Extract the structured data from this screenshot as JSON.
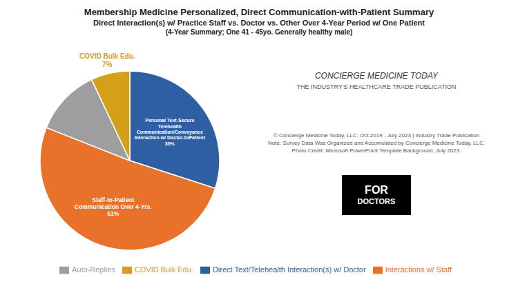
{
  "chart_data": {
    "type": "pie",
    "title": "Membership Medicine Personalized, Direct Communication-with-Patient Summary",
    "subtitle": [
      "Direct Interaction(s) w/ Practice Staff vs. Doctor vs. Other Over 4-Year Period w/ One Patient",
      "(4-Year Summary; One 41 - 45yo. Generally healthy male)"
    ],
    "categories": [
      "Direct Text/Telehealth Interaction(s) w/ Doctor",
      "Interactions w/ Staff",
      "Auto-Replies",
      "COVID Bulk Edu."
    ],
    "values": [
      30,
      51,
      12,
      7
    ],
    "value_labels": [
      "Personal Text-Secure\nTelehealth\nCommunication/Conveyance\nInteraction w/ Doctor-toPatient\n30%",
      "Staff-to-Patient\nCommunication Over 4-Yrs.\n51%",
      null,
      "COVID Bulk Edu.\n7%"
    ],
    "colors": [
      "#2E5FA3",
      "#E8722A",
      "#9E9E9E",
      "#D4A017"
    ],
    "legend": "bottom",
    "annotations": [
      "CONCIERGE MEDICINE TODAY",
      "THE INDUSTRY'S HEALTHCARE TRADE PUBLICATION",
      "© Concierge Medicine Today, LLC. Oct.2019 - July 2023 | Industry Trade Publication\nNote: Survey Data Was Organized and Accumulated by Concierge Medicine Today, LLC.\nPhoto Credit: Microsoft PowerPoint Template Background, July 2023.",
      "FOR",
      "DOCTORS"
    ]
  }
}
